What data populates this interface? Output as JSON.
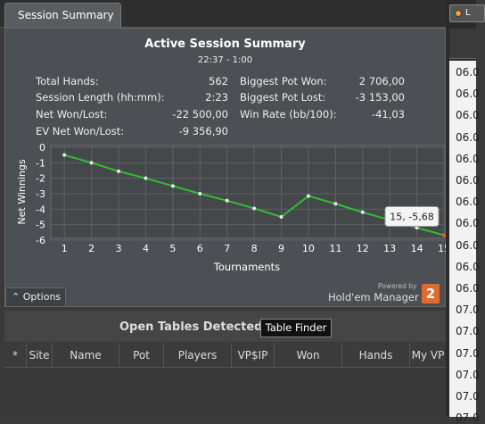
{
  "tab": {
    "label": "Session Summary"
  },
  "summary": {
    "title": "Active Session Summary",
    "time_range": "22:37 - 1:00",
    "stats_left": [
      {
        "label": "Total Hands:",
        "value": "562"
      },
      {
        "label": "Session Length (hh:mm):",
        "value": "2:23"
      },
      {
        "label": "Net Won/Lost:",
        "value": "-22 500,00"
      },
      {
        "label": "EV Net Won/Lost:",
        "value": "-9 356,90"
      }
    ],
    "stats_right": [
      {
        "label": "Biggest Pot Won:",
        "value": "2 706,00"
      },
      {
        "label": "Biggest Pot Lost:",
        "value": "-3 153,00"
      },
      {
        "label": "Win Rate (bb/100):",
        "value": "-41,03"
      }
    ]
  },
  "chart_data": {
    "type": "line",
    "xlabel": "Tournaments",
    "ylabel": "Net Winnings",
    "x": [
      1,
      2,
      3,
      4,
      5,
      6,
      7,
      8,
      9,
      10,
      11,
      12,
      13,
      14,
      15
    ],
    "series": [
      {
        "values": [
          -0.5,
          -1.0,
          -1.55,
          -2.0,
          -2.5,
          -3.0,
          -3.45,
          -3.95,
          -4.5,
          -3.15,
          -3.65,
          -4.2,
          -4.7,
          -5.2,
          -5.68
        ]
      }
    ],
    "xticks": [
      "1",
      "2",
      "3",
      "4",
      "5",
      "6",
      "7",
      "8",
      "9",
      "10",
      "11",
      "12",
      "13",
      "14",
      "15"
    ],
    "yticks": [
      "0",
      "-1",
      "-2",
      "-3",
      "-4",
      "-5",
      "-6"
    ],
    "xlim": [
      0.5,
      15
    ],
    "ylim": [
      -6,
      0
    ],
    "grid": true,
    "line_color": "#2ec02e",
    "marker_color": "#e8e8e8",
    "highlight_color": "#ff5030",
    "tooltip": "15, -5,68"
  },
  "options": {
    "label": "Options"
  },
  "branding": {
    "powered_by": "Powered by",
    "name": "Hold'em Manager",
    "logo_text": "2"
  },
  "open_tables": {
    "title": "Open Tables Detected",
    "finder_button": "Table Finder",
    "columns": [
      "*",
      "Site",
      "Name",
      "Pot",
      "Players",
      "VP$IP",
      "Won",
      "Hands",
      "My VP"
    ]
  },
  "right_panel": {
    "button_label": "L",
    "rows": [
      "06.0",
      "06.0",
      "06.0",
      "06.0",
      "06.0",
      "06.0",
      "06.0",
      "06.0",
      "06.0",
      "06.0",
      "06.0",
      "07.0",
      "07.0",
      "07.0",
      "07.0",
      "07.0",
      "07.0"
    ]
  }
}
